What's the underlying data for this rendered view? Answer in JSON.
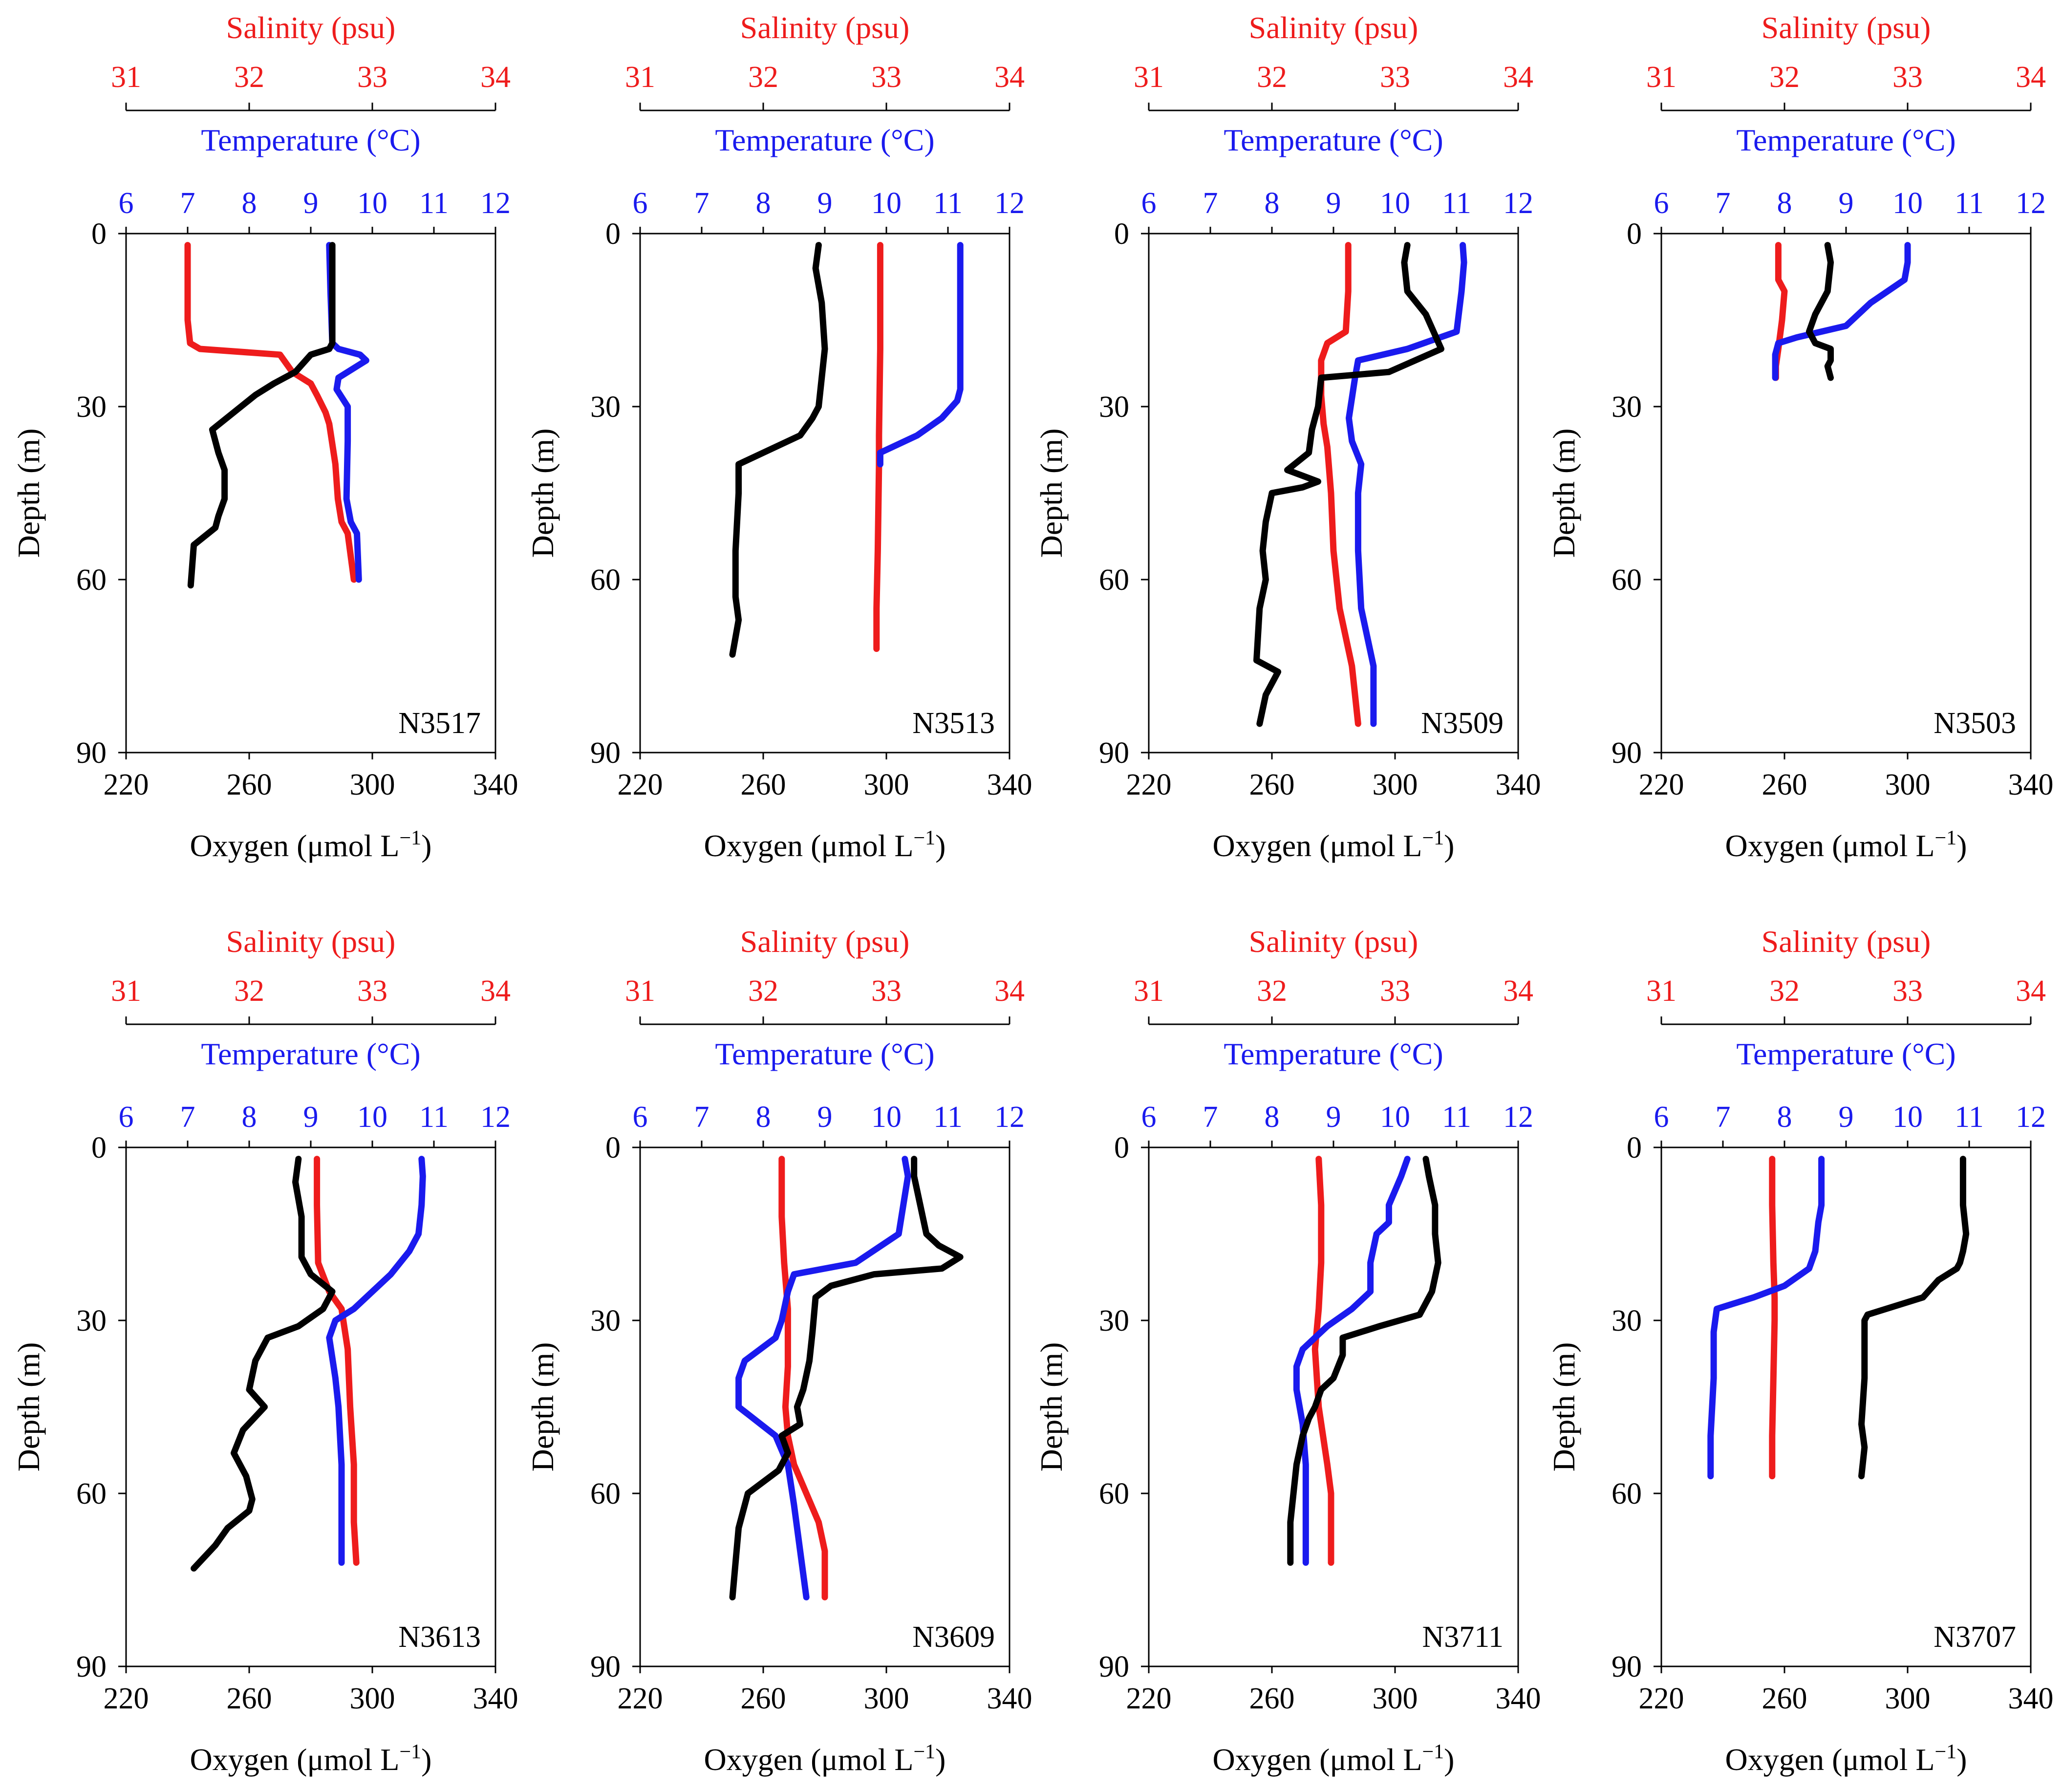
{
  "figure": {
    "salinity_label": "Salinity (psu)",
    "temperature_label": "Temperature (°C)",
    "depth_label": "Depth (m)",
    "oxygen_label_main": "Oxygen (μmol L",
    "oxygen_label_sup": "−1",
    "oxygen_label_end": ")"
  },
  "colors": {
    "salinity": "#ee1c1c",
    "temperature": "#1a1aee",
    "oxygen": "#000000",
    "axis": "#000000"
  },
  "axes": {
    "salinity": {
      "range": [
        31,
        34
      ],
      "ticks": [
        31,
        32,
        33,
        34
      ]
    },
    "temperature": {
      "range": [
        6,
        12
      ],
      "ticks": [
        6,
        7,
        8,
        9,
        10,
        11,
        12
      ]
    },
    "oxygen": {
      "range": [
        220,
        340
      ],
      "ticks": [
        220,
        260,
        300,
        340
      ]
    },
    "depth": {
      "range": [
        0,
        90
      ],
      "ticks": [
        0,
        30,
        60,
        90
      ]
    }
  },
  "chart_data": [
    {
      "type": "line",
      "station": "N3517",
      "series": [
        {
          "name": "Salinity",
          "x": [
            31.5,
            31.5,
            31.52,
            31.6,
            32.25,
            32.35,
            32.5,
            32.55,
            32.62,
            32.65,
            32.7,
            32.72,
            32.75,
            32.8,
            32.85
          ],
          "y": [
            2,
            15,
            19,
            20,
            21,
            24,
            26,
            28,
            31,
            33,
            40,
            46,
            50,
            52,
            60
          ]
        },
        {
          "name": "Temperature",
          "x": [
            9.3,
            9.32,
            9.35,
            9.45,
            9.8,
            9.9,
            9.75,
            9.45,
            9.42,
            9.6,
            9.6,
            9.58,
            9.65,
            9.75,
            9.78
          ],
          "y": [
            2,
            10,
            19,
            20,
            21,
            22,
            23,
            25,
            27,
            30,
            36,
            46,
            50,
            52,
            60
          ]
        },
        {
          "name": "Oxygen",
          "x": [
            287,
            287,
            287,
            286,
            280,
            275,
            268,
            262,
            255,
            248,
            250,
            252,
            252,
            250,
            249,
            242,
            241
          ],
          "y": [
            2,
            10,
            19,
            20,
            21,
            24,
            26,
            28,
            31,
            34,
            38,
            41,
            46,
            49,
            51,
            54,
            61
          ]
        }
      ]
    },
    {
      "type": "line",
      "station": "N3513",
      "series": [
        {
          "name": "Salinity",
          "x": [
            32.95,
            32.95,
            32.94,
            32.94,
            32.93,
            32.92,
            32.92
          ],
          "y": [
            2,
            20,
            35,
            40,
            55,
            65,
            72
          ]
        },
        {
          "name": "Temperature",
          "x": [
            11.2,
            11.2,
            11.2,
            11.2,
            11.15,
            10.9,
            10.5,
            9.9,
            9.9
          ],
          "y": [
            2,
            10,
            20,
            27,
            29,
            32,
            35,
            38,
            40
          ]
        },
        {
          "name": "Oxygen",
          "x": [
            278,
            277,
            279,
            280,
            279,
            278,
            276,
            272,
            260,
            252,
            252,
            251,
            251,
            252,
            251,
            250
          ],
          "y": [
            2,
            6,
            12,
            20,
            25,
            30,
            32,
            35,
            38,
            40,
            45,
            55,
            63,
            67,
            70,
            73
          ]
        }
      ]
    },
    {
      "type": "line",
      "station": "N3509",
      "series": [
        {
          "name": "Salinity",
          "x": [
            32.62,
            32.62,
            32.6,
            32.45,
            32.4,
            32.4,
            32.42,
            32.45,
            32.48,
            32.5,
            32.55,
            32.6,
            32.65,
            32.7
          ],
          "y": [
            2,
            10,
            17,
            19,
            22,
            28,
            33,
            37,
            45,
            55,
            65,
            70,
            75,
            85
          ]
        },
        {
          "name": "Temperature",
          "x": [
            11.1,
            11.12,
            11.08,
            11.0,
            10.2,
            9.4,
            9.35,
            9.25,
            9.3,
            9.45,
            9.4,
            9.4,
            9.45,
            9.55,
            9.65,
            9.65
          ],
          "y": [
            2,
            5,
            10,
            17,
            20,
            22,
            25,
            32,
            36,
            40,
            45,
            55,
            65,
            70,
            75,
            85
          ]
        },
        {
          "name": "Oxygen",
          "x": [
            304,
            303,
            304,
            310,
            315,
            298,
            276,
            275,
            273,
            272,
            265,
            275,
            270,
            260,
            258,
            257,
            258,
            256,
            255,
            262,
            258,
            256
          ],
          "y": [
            2,
            5,
            10,
            14,
            20,
            24,
            25,
            30,
            34,
            38,
            41,
            43,
            44,
            45,
            50,
            55,
            60,
            65,
            74,
            76,
            80,
            85
          ]
        }
      ]
    },
    {
      "type": "line",
      "station": "N3503",
      "series": [
        {
          "name": "Salinity",
          "x": [
            31.95,
            31.95,
            32.0,
            31.98,
            31.95,
            31.93,
            31.93
          ],
          "y": [
            2,
            8,
            10,
            15,
            20,
            23,
            25
          ]
        },
        {
          "name": "Temperature",
          "x": [
            10.0,
            10.0,
            9.95,
            9.4,
            9.0,
            8.2,
            7.9,
            7.85,
            7.85
          ],
          "y": [
            2,
            5,
            8,
            12,
            16,
            18,
            19,
            21,
            25
          ]
        },
        {
          "name": "Oxygen",
          "x": [
            274,
            275,
            274,
            270,
            268,
            270,
            275,
            275,
            274,
            275
          ],
          "y": [
            2,
            5,
            10,
            14,
            17,
            19,
            20,
            22,
            23,
            25
          ]
        }
      ]
    },
    {
      "type": "line",
      "station": "N3613",
      "series": [
        {
          "name": "Salinity",
          "x": [
            32.55,
            32.55,
            32.56,
            32.65,
            32.75,
            32.8,
            32.82,
            32.85,
            32.85,
            32.87
          ],
          "y": [
            2,
            10,
            20,
            25,
            28,
            35,
            45,
            55,
            65,
            72
          ]
        },
        {
          "name": "Temperature",
          "x": [
            10.8,
            10.82,
            10.8,
            10.75,
            10.6,
            10.3,
            10.0,
            9.7,
            9.4,
            9.3,
            9.4,
            9.45,
            9.5,
            9.5,
            9.5
          ],
          "y": [
            2,
            5,
            10,
            15,
            18,
            22,
            25,
            28,
            30,
            33,
            40,
            45,
            55,
            65,
            72
          ]
        },
        {
          "name": "Oxygen",
          "x": [
            276,
            275,
            277,
            277,
            280,
            287,
            284,
            276,
            266,
            262,
            260,
            265,
            258,
            255,
            259,
            261,
            260,
            253,
            249,
            242
          ],
          "y": [
            2,
            6,
            12,
            19,
            22,
            25,
            28,
            31,
            33,
            37,
            42,
            45,
            49,
            53,
            57,
            61,
            63,
            66,
            69,
            73
          ]
        }
      ]
    },
    {
      "type": "line",
      "station": "N3609",
      "series": [
        {
          "name": "Salinity",
          "x": [
            32.15,
            32.15,
            32.17,
            32.2,
            32.2,
            32.18,
            32.2,
            32.25,
            32.35,
            32.45,
            32.5,
            32.5
          ],
          "y": [
            2,
            12,
            20,
            28,
            38,
            45,
            50,
            55,
            60,
            65,
            70,
            78
          ]
        },
        {
          "name": "Temperature",
          "x": [
            10.3,
            10.35,
            10.2,
            9.5,
            8.5,
            8.4,
            8.3,
            8.2,
            7.7,
            7.6,
            7.6,
            8.2,
            8.4,
            8.5,
            8.6,
            8.7
          ],
          "y": [
            2,
            5,
            15,
            20,
            22,
            25,
            30,
            33,
            37,
            40,
            45,
            50,
            55,
            62,
            70,
            78
          ]
        },
        {
          "name": "Oxygen",
          "x": [
            309,
            309,
            311,
            313,
            317,
            324,
            318,
            296,
            282,
            277,
            276,
            275,
            273,
            271,
            272,
            266,
            268,
            265,
            255,
            252,
            251,
            250
          ],
          "y": [
            2,
            5,
            10,
            15,
            17,
            19,
            21,
            22,
            24,
            26,
            32,
            37,
            42,
            45,
            48,
            50,
            53,
            56,
            60,
            66,
            72,
            78
          ]
        }
      ]
    },
    {
      "type": "line",
      "station": "N3711",
      "series": [
        {
          "name": "Salinity",
          "x": [
            32.38,
            32.4,
            32.4,
            32.38,
            32.35,
            32.38,
            32.45,
            32.48,
            32.48,
            32.48
          ],
          "y": [
            2,
            10,
            20,
            28,
            35,
            45,
            55,
            60,
            65,
            72
          ]
        },
        {
          "name": "Temperature",
          "x": [
            10.2,
            10.1,
            9.9,
            9.9,
            9.7,
            9.6,
            9.6,
            9.3,
            8.9,
            8.7,
            8.5,
            8.4,
            8.4,
            8.5,
            8.55,
            8.55,
            8.55
          ],
          "y": [
            2,
            5,
            10,
            13,
            15,
            20,
            25,
            28,
            31,
            33,
            35,
            38,
            42,
            48,
            55,
            65,
            72
          ]
        },
        {
          "name": "Oxygen",
          "x": [
            310,
            311,
            313,
            313,
            314,
            312,
            310,
            308,
            295,
            283,
            283,
            280,
            276,
            274,
            272,
            270,
            268,
            267,
            266,
            266
          ],
          "y": [
            2,
            5,
            10,
            15,
            20,
            25,
            27,
            29,
            31,
            33,
            36,
            40,
            42,
            45,
            47,
            50,
            55,
            60,
            65,
            72
          ]
        }
      ]
    },
    {
      "type": "line",
      "station": "N3707",
      "series": [
        {
          "name": "Salinity",
          "x": [
            31.9,
            31.9,
            31.91,
            31.92,
            31.92,
            31.91,
            31.9,
            31.9
          ],
          "y": [
            2,
            10,
            20,
            26,
            30,
            40,
            50,
            57
          ]
        },
        {
          "name": "Temperature",
          "x": [
            8.6,
            8.6,
            8.6,
            8.55,
            8.5,
            8.4,
            8.0,
            7.5,
            7.2,
            6.9,
            6.85,
            6.85,
            6.8,
            6.8
          ],
          "y": [
            2,
            5,
            10,
            13,
            18,
            21,
            24,
            26,
            27,
            28,
            32,
            40,
            50,
            57
          ]
        },
        {
          "name": "Oxygen",
          "x": [
            318,
            318,
            318,
            319,
            318,
            317,
            316,
            310,
            305,
            287,
            286,
            286,
            286,
            285,
            286,
            285
          ],
          "y": [
            2,
            5,
            10,
            15,
            18,
            20,
            21,
            23,
            26,
            29,
            30,
            32,
            40,
            48,
            52,
            57
          ]
        }
      ]
    }
  ]
}
